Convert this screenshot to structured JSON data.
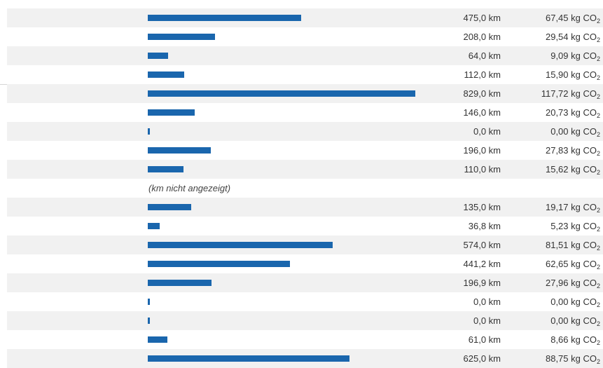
{
  "colors": {
    "bar": "#1a66ad",
    "row_shade": "#f1f1f1",
    "text": "#333333"
  },
  "chart_data": {
    "type": "bar",
    "orientation": "horizontal",
    "grid": false,
    "max_value": 829.0,
    "rows": [
      {
        "km": 475.0,
        "km_text": "475,0 km",
        "co2_text": "67,45 kg CO",
        "co2_sub": "2",
        "shaded": true
      },
      {
        "km": 208.0,
        "km_text": "208,0 km",
        "co2_text": "29,54 kg CO",
        "co2_sub": "2",
        "shaded": false
      },
      {
        "km": 64.0,
        "km_text": "64,0 km",
        "co2_text": "9,09 kg CO",
        "co2_sub": "2",
        "shaded": true
      },
      {
        "km": 112.0,
        "km_text": "112,0 km",
        "co2_text": "15,90 kg CO",
        "co2_sub": "2",
        "shaded": false
      },
      {
        "km": 829.0,
        "km_text": "829,0 km",
        "co2_text": "117,72 kg CO",
        "co2_sub": "2",
        "shaded": true
      },
      {
        "km": 146.0,
        "km_text": "146,0 km",
        "co2_text": "20,73 kg CO",
        "co2_sub": "2",
        "shaded": false
      },
      {
        "km": 0.0,
        "km_text": "0,0 km",
        "co2_text": "0,00 kg CO",
        "co2_sub": "2",
        "shaded": true
      },
      {
        "km": 196.0,
        "km_text": "196,0 km",
        "co2_text": "27,83 kg CO",
        "co2_sub": "2",
        "shaded": false
      },
      {
        "km": 110.0,
        "km_text": "110,0 km",
        "co2_text": "15,62 kg CO",
        "co2_sub": "2",
        "shaded": true
      },
      {
        "note": "(km nicht angezeigt)",
        "shaded": false
      },
      {
        "km": 135.0,
        "km_text": "135,0 km",
        "co2_text": "19,17 kg CO",
        "co2_sub": "2",
        "shaded": true
      },
      {
        "km": 36.8,
        "km_text": "36,8 km",
        "co2_text": "5,23 kg CO",
        "co2_sub": "2",
        "shaded": false
      },
      {
        "km": 574.0,
        "km_text": "574,0 km",
        "co2_text": "81,51 kg CO",
        "co2_sub": "2",
        "shaded": true
      },
      {
        "km": 441.2,
        "km_text": "441,2 km",
        "co2_text": "62,65 kg CO",
        "co2_sub": "2",
        "shaded": false
      },
      {
        "km": 196.9,
        "km_text": "196,9 km",
        "co2_text": "27,96 kg CO",
        "co2_sub": "2",
        "shaded": true
      },
      {
        "km": 0.0,
        "km_text": "0,0 km",
        "co2_text": "0,00 kg CO",
        "co2_sub": "2",
        "shaded": false
      },
      {
        "km": 0.0,
        "km_text": "0,0 km",
        "co2_text": "0,00 kg CO",
        "co2_sub": "2",
        "shaded": true
      },
      {
        "km": 61.0,
        "km_text": "61,0 km",
        "co2_text": "8,66 kg CO",
        "co2_sub": "2",
        "shaded": false
      },
      {
        "km": 625.0,
        "km_text": "625,0 km",
        "co2_text": "88,75 kg CO",
        "co2_sub": "2",
        "shaded": true
      }
    ]
  }
}
